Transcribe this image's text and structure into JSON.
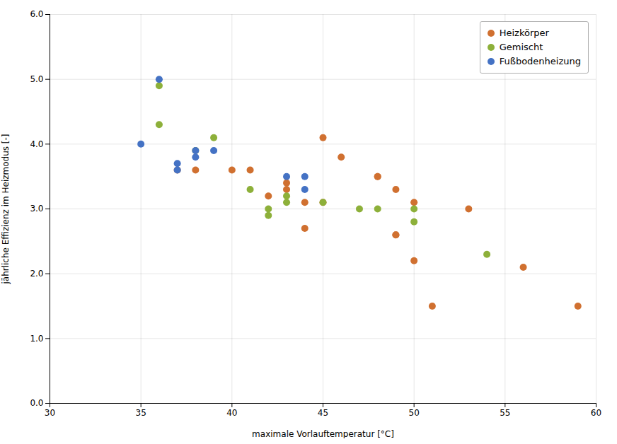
{
  "chart_data": {
    "type": "scatter",
    "xlabel": "maximale Vorlauftemperatur [°C]",
    "ylabel": "jährliche Effizienz im Heizmodus [-]",
    "series": [
      {
        "name": "Heizkörper",
        "color": "#d07030",
        "x": [
          37,
          38,
          40,
          41,
          42,
          43,
          43,
          44,
          44,
          45,
          45,
          46,
          48,
          48,
          49,
          49,
          49,
          50,
          50,
          51,
          53,
          56,
          59
        ],
        "values": [
          3.6,
          3.6,
          3.6,
          3.6,
          3.2,
          3.4,
          3.3,
          3.1,
          2.7,
          4.1,
          3.1,
          3.8,
          3.5,
          3.5,
          3.3,
          2.6,
          2.6,
          3.1,
          2.2,
          1.5,
          3.0,
          2.1,
          1.5
        ]
      },
      {
        "name": "Gemischt",
        "color": "#8db03a",
        "x": [
          36,
          36,
          38,
          39,
          41,
          42,
          42,
          43,
          43,
          45,
          47,
          48,
          50,
          50,
          54
        ],
        "values": [
          4.9,
          4.3,
          3.9,
          4.1,
          3.3,
          3.0,
          2.9,
          3.2,
          3.1,
          3.1,
          3.0,
          3.0,
          3.0,
          2.8,
          2.3
        ]
      },
      {
        "name": "Fußbodenheizung",
        "color": "#4472c4",
        "x": [
          35,
          36,
          37,
          37,
          38,
          38,
          39,
          43,
          44,
          44
        ],
        "values": [
          4.0,
          5.0,
          3.7,
          3.6,
          3.8,
          3.9,
          3.9,
          3.5,
          3.5,
          3.3
        ]
      }
    ],
    "xlim": [
      30,
      60
    ],
    "ylim": [
      0,
      6
    ],
    "xticks": [
      30,
      35,
      40,
      45,
      50,
      55,
      60
    ],
    "yticks": [
      0,
      1,
      2,
      3,
      4,
      5,
      6
    ],
    "grid": true,
    "legend": "upper right"
  }
}
